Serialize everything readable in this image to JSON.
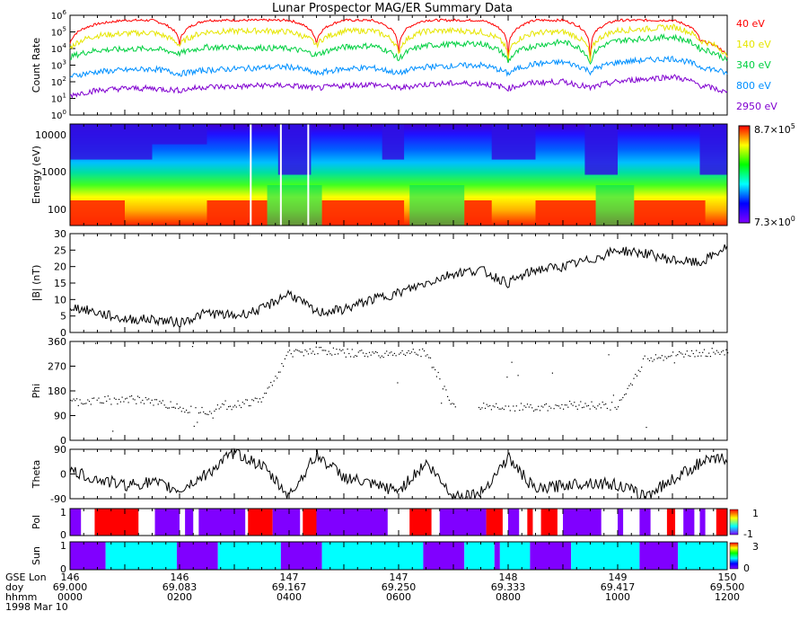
{
  "title": "Lunar Prospector MAG/ER Summary Data",
  "footer": {
    "row_labels": [
      "GSE Lon",
      "doy",
      "hhmm",
      "1998 Mar 10"
    ],
    "ticks": [
      {
        "lon": "146",
        "doy": "69.000",
        "hhmm": "0000"
      },
      {
        "lon": "146",
        "doy": "69.083",
        "hhmm": "0200"
      },
      {
        "lon": "147",
        "doy": "69.167",
        "hhmm": "0400"
      },
      {
        "lon": "147",
        "doy": "69.250",
        "hhmm": "0600"
      },
      {
        "lon": "148",
        "doy": "69.333",
        "hhmm": "0800"
      },
      {
        "lon": "149",
        "doy": "69.417",
        "hhmm": "1000"
      },
      {
        "lon": "150",
        "doy": "69.500",
        "hhmm": "1200"
      }
    ]
  },
  "colors": {
    "40 eV": "#ff0000",
    "140 eV": "#e6e600",
    "340 eV": "#00d040",
    "800 eV": "#0090ff",
    "2950 eV": "#8000d0",
    "pol_pos": "#ff0000",
    "pol_neg": "#8000ff",
    "sun_day": "#00ffff",
    "sun_night": "#8000ff"
  },
  "chart_data": [
    {
      "type": "line",
      "panel": "counts",
      "ylabel": "Count Rate",
      "yscale": "log",
      "ylim": [
        1,
        1000000
      ],
      "ytick_labels": [
        "10^6",
        "10^5",
        "10^4",
        "10^3",
        "10^2",
        "10^1",
        "10^0"
      ],
      "x_unit": "hour",
      "xlim": [
        0,
        12
      ],
      "x": [
        0,
        0.5,
        1,
        1.5,
        2,
        2.5,
        3,
        3.5,
        4,
        4.5,
        5,
        5.5,
        6,
        6.5,
        7,
        7.5,
        8,
        8.5,
        9,
        9.5,
        10,
        10.5,
        11,
        11.5,
        12
      ],
      "series": [
        {
          "name": "40 eV",
          "values": [
            20000,
            300000,
            500000,
            500000,
            20000,
            500000,
            500000,
            500000,
            500000,
            20000,
            500000,
            500000,
            5000,
            500000,
            500000,
            500000,
            3000,
            500000,
            500000,
            2000,
            500000,
            500000,
            500000,
            30000,
            3000
          ]
        },
        {
          "name": "140 eV",
          "values": [
            10000,
            60000,
            80000,
            90000,
            15000,
            100000,
            110000,
            120000,
            100000,
            15000,
            110000,
            120000,
            4000,
            110000,
            120000,
            100000,
            2000,
            90000,
            100000,
            1500,
            120000,
            150000,
            200000,
            30000,
            2500
          ]
        },
        {
          "name": "340 eV",
          "values": [
            3000,
            8000,
            9000,
            10000,
            5000,
            12000,
            12000,
            11000,
            10000,
            4000,
            12000,
            15000,
            2000,
            15000,
            18000,
            20000,
            1500,
            15000,
            25000,
            1000,
            30000,
            40000,
            50000,
            10000,
            1500
          ]
        },
        {
          "name": "800 eV",
          "values": [
            200,
            400,
            500,
            600,
            300,
            500,
            600,
            700,
            800,
            300,
            600,
            700,
            300,
            800,
            900,
            1000,
            300,
            1200,
            1500,
            400,
            1500,
            2000,
            2500,
            800,
            300
          ]
        },
        {
          "name": "2950 eV",
          "values": [
            15,
            30,
            40,
            40,
            30,
            50,
            50,
            60,
            60,
            40,
            60,
            70,
            40,
            70,
            80,
            80,
            40,
            90,
            100,
            40,
            100,
            150,
            200,
            60,
            20
          ]
        }
      ]
    },
    {
      "type": "heatmap",
      "panel": "spectrogram",
      "ylabel": "Energy (eV)",
      "yscale": "log",
      "ylim": [
        40,
        15000
      ],
      "ytick_labels": [
        "10000",
        "1000",
        "100"
      ],
      "colorbar_max": "8.7×10^5",
      "colorbar_min": "7.3×10^0"
    },
    {
      "type": "line",
      "panel": "B",
      "ylabel": "|B| (nT)",
      "ylim": [
        0,
        30
      ],
      "ytick_labels": [
        "30",
        "25",
        "20",
        "15",
        "10",
        "5",
        "0"
      ],
      "x": [
        0,
        0.5,
        1,
        1.5,
        2,
        2.5,
        3,
        3.5,
        4,
        4.5,
        5,
        5.5,
        6,
        6.5,
        7,
        7.5,
        8,
        8.5,
        9,
        9.5,
        10,
        10.5,
        11,
        11.5,
        12
      ],
      "values": [
        8,
        6,
        4,
        4,
        3,
        6,
        5,
        7,
        12,
        6,
        7,
        10,
        12,
        15,
        18,
        19,
        15,
        19,
        20,
        22,
        25,
        24,
        22,
        21,
        26
      ]
    },
    {
      "type": "scatter",
      "panel": "phi",
      "ylabel": "Phi",
      "ylim": [
        0,
        360
      ],
      "ytick_labels": [
        "360",
        "270",
        "180",
        "90",
        "0"
      ],
      "x": [
        0,
        0.5,
        1,
        1.5,
        2,
        2.5,
        3,
        3.5,
        4,
        4.5,
        5,
        5.5,
        6,
        6.5,
        7,
        7.5,
        8,
        8.5,
        9,
        9.5,
        10,
        10.5,
        11,
        11.5,
        12
      ],
      "values": [
        140,
        145,
        150,
        145,
        120,
        110,
        130,
        150,
        320,
        330,
        320,
        315,
        320,
        320,
        120,
        125,
        125,
        120,
        130,
        130,
        125,
        300,
        310,
        320,
        325
      ]
    },
    {
      "type": "line",
      "panel": "theta",
      "ylabel": "Theta",
      "ylim": [
        -90,
        90
      ],
      "ytick_labels": [
        "90",
        "0",
        "-90"
      ],
      "x": [
        0,
        0.5,
        1,
        1.5,
        2,
        2.5,
        3,
        3.5,
        4,
        4.5,
        5,
        5.5,
        6,
        6.5,
        7,
        7.5,
        8,
        8.5,
        9,
        9.5,
        10,
        10.5,
        11,
        11.5,
        12
      ],
      "values": [
        10,
        -20,
        -40,
        -30,
        -60,
        0,
        80,
        30,
        -80,
        70,
        -10,
        -40,
        -60,
        40,
        -80,
        -70,
        60,
        -60,
        -40,
        -30,
        -40,
        -80,
        -20,
        40,
        60
      ]
    },
    {
      "type": "bar",
      "panel": "pol",
      "ylabel": "Pol",
      "ytick_labels": [
        "1",
        "0"
      ],
      "colorbar_top": "1",
      "colorbar_bottom": "-1",
      "segments_hours": [
        [
          0,
          0.2,
          "pol_neg"
        ],
        [
          0.45,
          1.25,
          "pol_pos"
        ],
        [
          1.55,
          2.0,
          "pol_neg"
        ],
        [
          2.1,
          2.25,
          "pol_neg"
        ],
        [
          2.35,
          3.2,
          "pol_neg"
        ],
        [
          3.25,
          3.7,
          "pol_pos"
        ],
        [
          3.7,
          4.2,
          "pol_neg"
        ],
        [
          4.25,
          4.5,
          "pol_pos"
        ],
        [
          4.5,
          5.8,
          "pol_neg"
        ],
        [
          6.2,
          6.6,
          "pol_pos"
        ],
        [
          6.75,
          7.6,
          "pol_neg"
        ],
        [
          7.6,
          7.9,
          "pol_pos"
        ],
        [
          8.0,
          8.2,
          "pol_neg"
        ],
        [
          8.35,
          8.45,
          "pol_pos"
        ],
        [
          8.6,
          8.9,
          "pol_pos"
        ],
        [
          9.0,
          9.7,
          "pol_neg"
        ],
        [
          10.0,
          10.1,
          "pol_neg"
        ],
        [
          10.4,
          10.6,
          "pol_neg"
        ],
        [
          10.9,
          11.05,
          "pol_pos"
        ],
        [
          11.2,
          11.4,
          "pol_neg"
        ],
        [
          11.5,
          11.6,
          "pol_neg"
        ],
        [
          11.8,
          12,
          "pol_pos"
        ]
      ]
    },
    {
      "type": "bar",
      "panel": "sun",
      "ylabel": "Sun",
      "ytick_labels": [
        "1",
        "0"
      ],
      "colorbar_top": "3",
      "colorbar_bottom": "0",
      "segments_hours": [
        [
          0,
          0.65,
          "sun_night"
        ],
        [
          0.65,
          1.95,
          "sun_day"
        ],
        [
          1.95,
          2.7,
          "sun_night"
        ],
        [
          2.7,
          3.85,
          "sun_day"
        ],
        [
          3.85,
          4.6,
          "sun_night"
        ],
        [
          4.6,
          6.45,
          "sun_day"
        ],
        [
          6.45,
          7.2,
          "sun_night"
        ],
        [
          7.2,
          7.75,
          "sun_day"
        ],
        [
          7.75,
          7.85,
          "sun_night"
        ],
        [
          7.85,
          8.4,
          "sun_day"
        ],
        [
          8.4,
          9.15,
          "sun_night"
        ],
        [
          9.15,
          10.4,
          "sun_day"
        ],
        [
          10.4,
          11.1,
          "sun_night"
        ],
        [
          11.1,
          12,
          "sun_day"
        ]
      ]
    }
  ]
}
